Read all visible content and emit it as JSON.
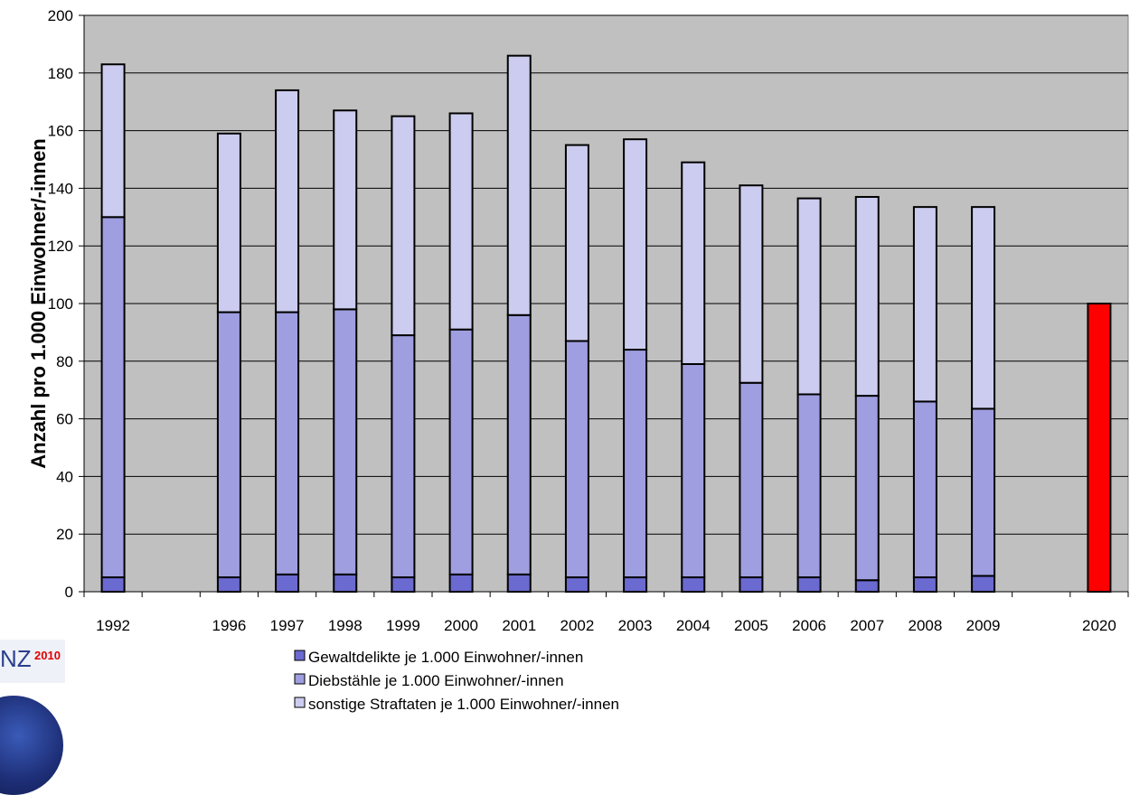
{
  "logo": {
    "text": "NZ",
    "year": "2010"
  },
  "chart_data": {
    "type": "bar",
    "stacked": true,
    "ylabel": "Anzahl pro 1.000 Einwohner/-innen",
    "ylim": [
      0,
      200
    ],
    "yticks": [
      0,
      20,
      40,
      60,
      80,
      100,
      120,
      140,
      160,
      180,
      200
    ],
    "grid": true,
    "legend_position": "bottom",
    "categories": [
      "1992",
      "",
      "1996",
      "1997",
      "1998",
      "1999",
      "2000",
      "2001",
      "2002",
      "2003",
      "2004",
      "2005",
      "2006",
      "2007",
      "2008",
      "2009",
      "",
      "2020"
    ],
    "series": [
      {
        "name": "Gewaltdelikte je 1.000  Einwohner/-innen",
        "color": "#6a6ad0",
        "values": [
          5,
          null,
          5,
          6,
          6,
          5,
          6,
          6,
          5,
          5,
          5,
          5,
          5,
          4,
          5,
          5.5,
          null,
          null
        ]
      },
      {
        "name": "Diebstähle je 1.000  Einwohner/-innen",
        "color": "#9e9ee0",
        "values": [
          125,
          null,
          92,
          91,
          92,
          84,
          85,
          90,
          82,
          79,
          74,
          67.5,
          63.5,
          64,
          61,
          58,
          null,
          null
        ]
      },
      {
        "name": "sonstige Straftaten je 1.000  Einwohner/-innen",
        "color": "#ccccf0",
        "values": [
          53,
          null,
          62,
          77,
          69,
          76,
          75,
          90,
          68,
          73,
          70,
          68.5,
          68,
          69,
          67.5,
          70,
          null,
          null
        ]
      }
    ],
    "target": {
      "category": "2020",
      "value": 100,
      "color": "#ff0000"
    },
    "plot_background": "#c0c0c0"
  }
}
